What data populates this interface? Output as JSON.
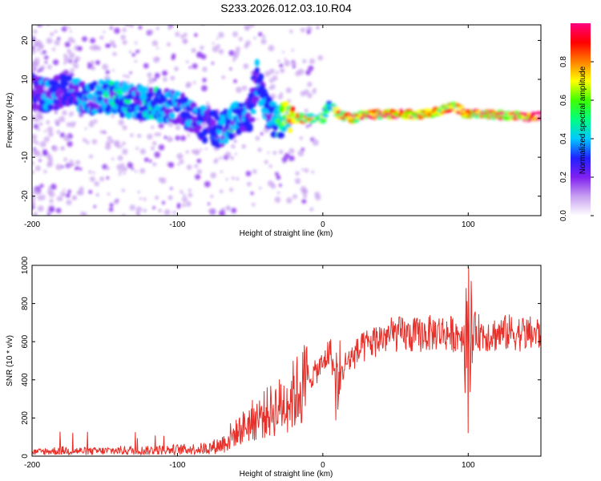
{
  "title": "S233.2026.012.03.10.R04",
  "chart_data": [
    {
      "type": "heatmap",
      "xlabel": "Height of straight line (km)",
      "ylabel": "Frequency (Hz)",
      "xlim": [
        -200,
        150
      ],
      "ylim": [
        -25,
        24
      ],
      "xticks": [
        -200,
        -100,
        0,
        100
      ],
      "xtick_labels": [
        "-200",
        "-100",
        "0",
        "100"
      ],
      "yticks": [
        -20,
        -10,
        0,
        10,
        20
      ],
      "ytick_labels": [
        "-20",
        "-10",
        "0",
        "10",
        "20"
      ],
      "colorbar": {
        "label": "Normalized spectral amplitude",
        "range": [
          0,
          1
        ],
        "ticks": [
          0.0,
          0.2,
          0.4,
          0.6,
          0.8
        ],
        "tick_labels": [
          "0.0",
          "0.2",
          "0.4",
          "0.6",
          "0.8"
        ],
        "colors": [
          "#ffffff",
          "#c8a0f0",
          "#8020f0",
          "#2020ff",
          "#00c8ff",
          "#00ff80",
          "#40ff00",
          "#ffff00",
          "#ff8000",
          "#ff0000",
          "#ff0080"
        ]
      },
      "ridge": {
        "x": [
          -200,
          -190,
          -180,
          -170,
          -160,
          -150,
          -140,
          -130,
          -120,
          -110,
          -100,
          -90,
          -80,
          -70,
          -60,
          -50,
          -45,
          -40,
          -35,
          -30,
          -25,
          -20,
          -10,
          0,
          5,
          10,
          20,
          30,
          40,
          50,
          60,
          70,
          80,
          90,
          100,
          110,
          120,
          130,
          140,
          150
        ],
        "y": [
          7,
          6,
          7,
          6,
          5,
          6,
          5,
          4,
          4,
          3,
          3,
          1,
          -2,
          -3,
          0,
          1,
          11,
          4,
          0,
          -1,
          0,
          0,
          0,
          0,
          4,
          1,
          0,
          1,
          1,
          1,
          1,
          1,
          2,
          3,
          1,
          1,
          1,
          0.5,
          0.5,
          0.5
        ],
        "amplitude": [
          0.2,
          0.35,
          0.25,
          0.3,
          0.3,
          0.35,
          0.4,
          0.35,
          0.4,
          0.35,
          0.3,
          0.3,
          0.3,
          0.35,
          0.35,
          0.3,
          0.3,
          0.3,
          0.4,
          0.45,
          0.6,
          0.75,
          0.7,
          0.55,
          0.45,
          0.7,
          0.8,
          0.85,
          0.9,
          0.9,
          0.9,
          0.7,
          0.75,
          0.75,
          0.8,
          0.8,
          0.85,
          0.85,
          0.85,
          0.85
        ]
      }
    },
    {
      "type": "line",
      "xlabel": "Height of straight line (km)",
      "ylabel": "SNR (10 * v/v)",
      "xlim": [
        -200,
        150
      ],
      "ylim": [
        0,
        1000
      ],
      "xticks": [
        -200,
        -100,
        0,
        100
      ],
      "xtick_labels": [
        "-200",
        "-100",
        "0",
        "100"
      ],
      "yticks": [
        0,
        200,
        400,
        600,
        800,
        1000
      ],
      "ytick_labels": [
        "0",
        "200",
        "400",
        "600",
        "800",
        "1000"
      ],
      "color": "#e8302a",
      "series_envelope": {
        "x": [
          -200,
          -180,
          -160,
          -140,
          -120,
          -100,
          -80,
          -70,
          -60,
          -50,
          -40,
          -30,
          -20,
          -10,
          0,
          5,
          10,
          15,
          20,
          30,
          40,
          50,
          60,
          70,
          80,
          90,
          95,
          100,
          105,
          110,
          120,
          130,
          140,
          150
        ],
        "y": [
          20,
          30,
          25,
          30,
          30,
          35,
          40,
          60,
          120,
          180,
          220,
          260,
          320,
          400,
          480,
          560,
          350,
          480,
          520,
          580,
          620,
          640,
          630,
          640,
          650,
          640,
          640,
          620,
          660,
          640,
          640,
          650,
          640,
          640
        ]
      },
      "annotations": [
        {
          "x": 100,
          "y": 1000,
          "note": "spike"
        },
        {
          "x": 100,
          "y": 120,
          "note": "dip"
        }
      ]
    }
  ]
}
